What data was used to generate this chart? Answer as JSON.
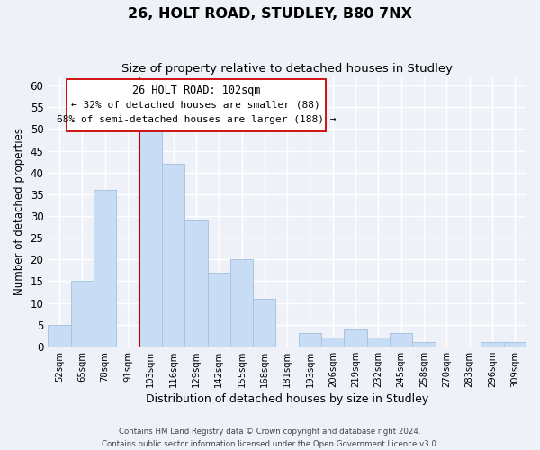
{
  "title": "26, HOLT ROAD, STUDLEY, B80 7NX",
  "subtitle": "Size of property relative to detached houses in Studley",
  "xlabel": "Distribution of detached houses by size in Studley",
  "ylabel": "Number of detached properties",
  "bar_color": "#c8ddf5",
  "bar_edge_color": "#a8c4e0",
  "vline_color": "#cc0000",
  "categories": [
    "52sqm",
    "65sqm",
    "78sqm",
    "91sqm",
    "103sqm",
    "116sqm",
    "129sqm",
    "142sqm",
    "155sqm",
    "168sqm",
    "181sqm",
    "193sqm",
    "206sqm",
    "219sqm",
    "232sqm",
    "245sqm",
    "258sqm",
    "270sqm",
    "283sqm",
    "296sqm",
    "309sqm"
  ],
  "values": [
    5,
    15,
    36,
    0,
    50,
    42,
    29,
    17,
    20,
    11,
    0,
    3,
    2,
    4,
    2,
    3,
    1,
    0,
    0,
    1,
    1
  ],
  "vline_index": 4,
  "ylim": [
    0,
    62
  ],
  "yticks": [
    0,
    5,
    10,
    15,
    20,
    25,
    30,
    35,
    40,
    45,
    50,
    55,
    60
  ],
  "annotation_title": "26 HOLT ROAD: 102sqm",
  "annotation_line1": "← 32% of detached houses are smaller (88)",
  "annotation_line2": "68% of semi-detached houses are larger (188) →",
  "footer1": "Contains HM Land Registry data © Crown copyright and database right 2024.",
  "footer2": "Contains public sector information licensed under the Open Government Licence v3.0.",
  "background_color": "#eef2f8",
  "plot_background": "#eef2f8",
  "grid_color": "#ffffff"
}
